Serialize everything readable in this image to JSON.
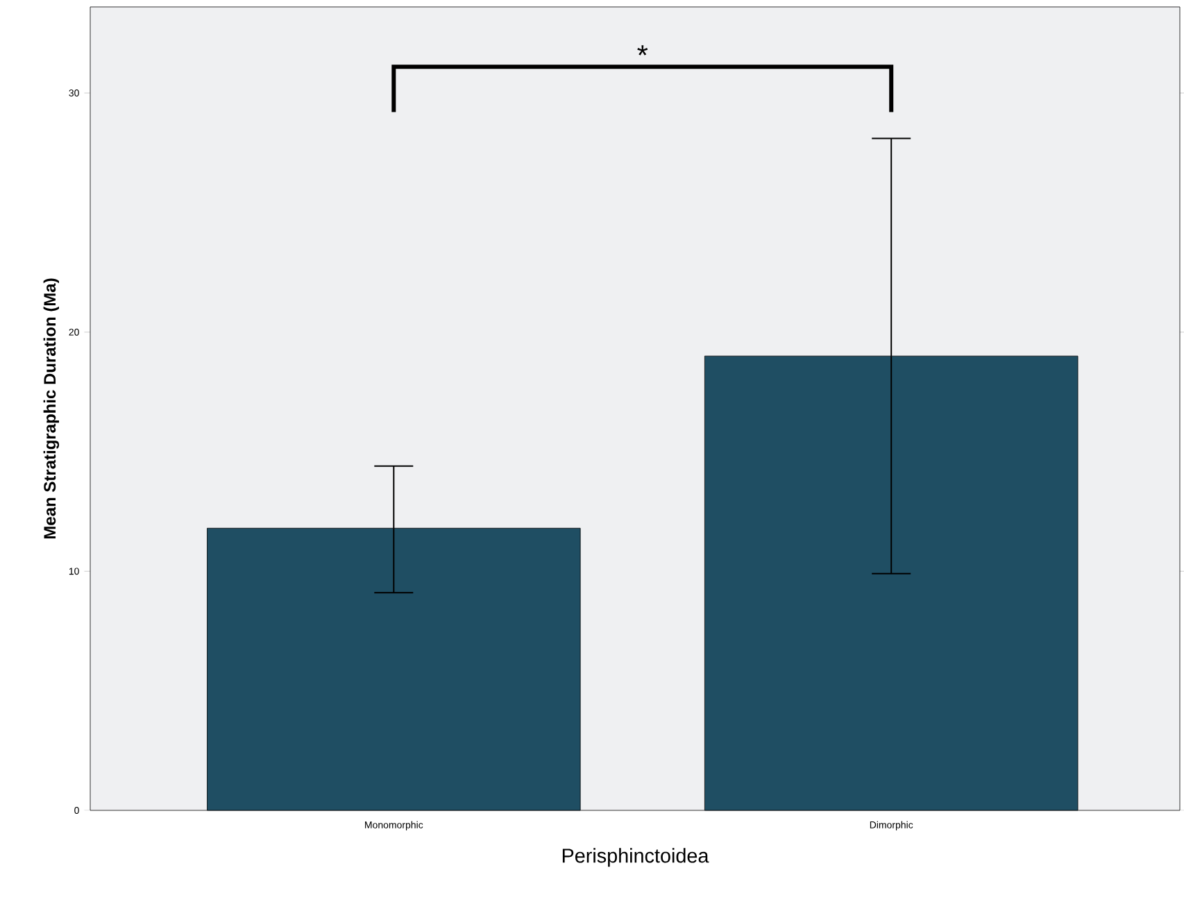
{
  "chart_data": {
    "type": "bar",
    "categories": [
      "Monomorphic",
      "Dimorphic"
    ],
    "values": [
      11.8,
      19.0
    ],
    "errors": [
      [
        9.1,
        14.4
      ],
      [
        9.9,
        28.1
      ]
    ],
    "color": "#1f4e63",
    "xlabel": "Perisphinctoidea",
    "ylabel": "Mean Stratigraphic Duration (Ma)",
    "ylim": [
      0,
      33.6
    ],
    "yticks": [
      0,
      10,
      20,
      30
    ],
    "grid": false,
    "annotations": [
      "*"
    ]
  }
}
